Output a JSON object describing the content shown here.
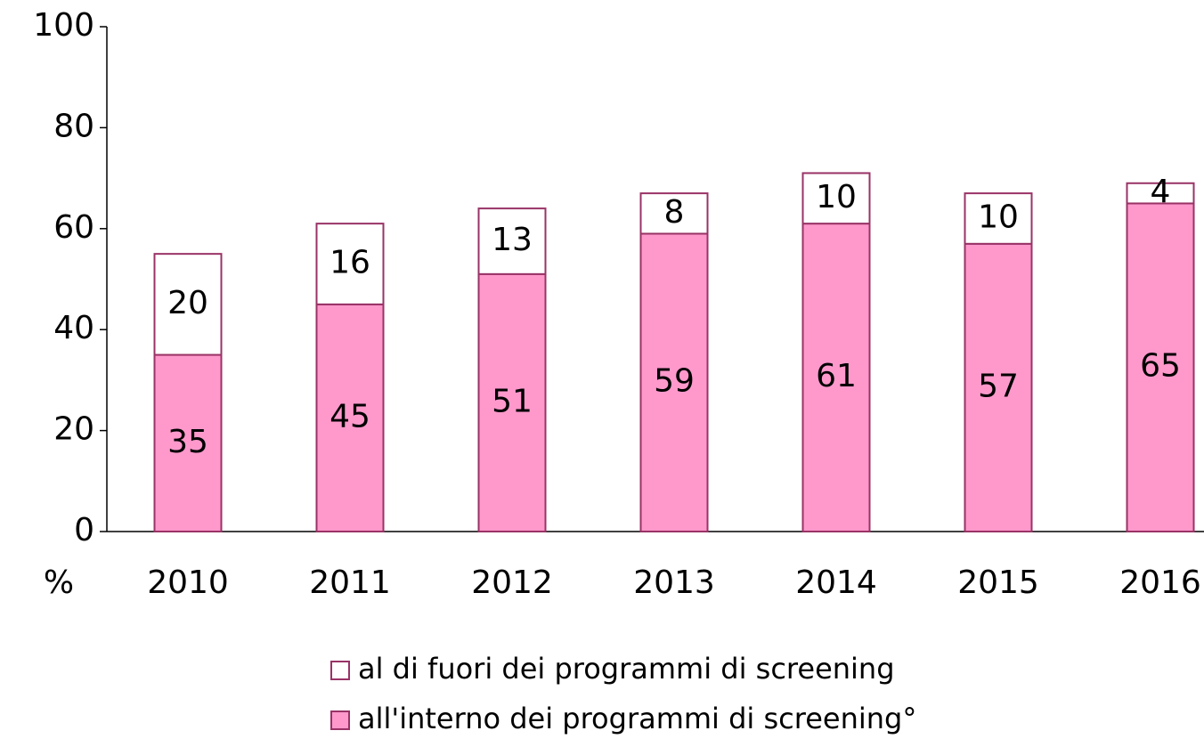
{
  "chart_data": {
    "type": "stacked_bar",
    "ylabel": "%",
    "categories": [
      "2010",
      "2011",
      "2012",
      "2013",
      "2014",
      "2015",
      "2016"
    ],
    "series": [
      {
        "name": "all'interno dei programmi di screening°",
        "color": "#ff99cc",
        "values": [
          35,
          45,
          51,
          59,
          61,
          57,
          65
        ]
      },
      {
        "name": "al di fuori dei programmi di screening",
        "color": "#ffffff",
        "values": [
          20,
          16,
          13,
          8,
          10,
          10,
          4
        ]
      }
    ],
    "edge_color": "#993366",
    "ylim": [
      0,
      100
    ],
    "yticks": [
      0,
      20,
      40,
      60,
      80,
      100
    ],
    "grid": false,
    "legend": "bottom"
  }
}
